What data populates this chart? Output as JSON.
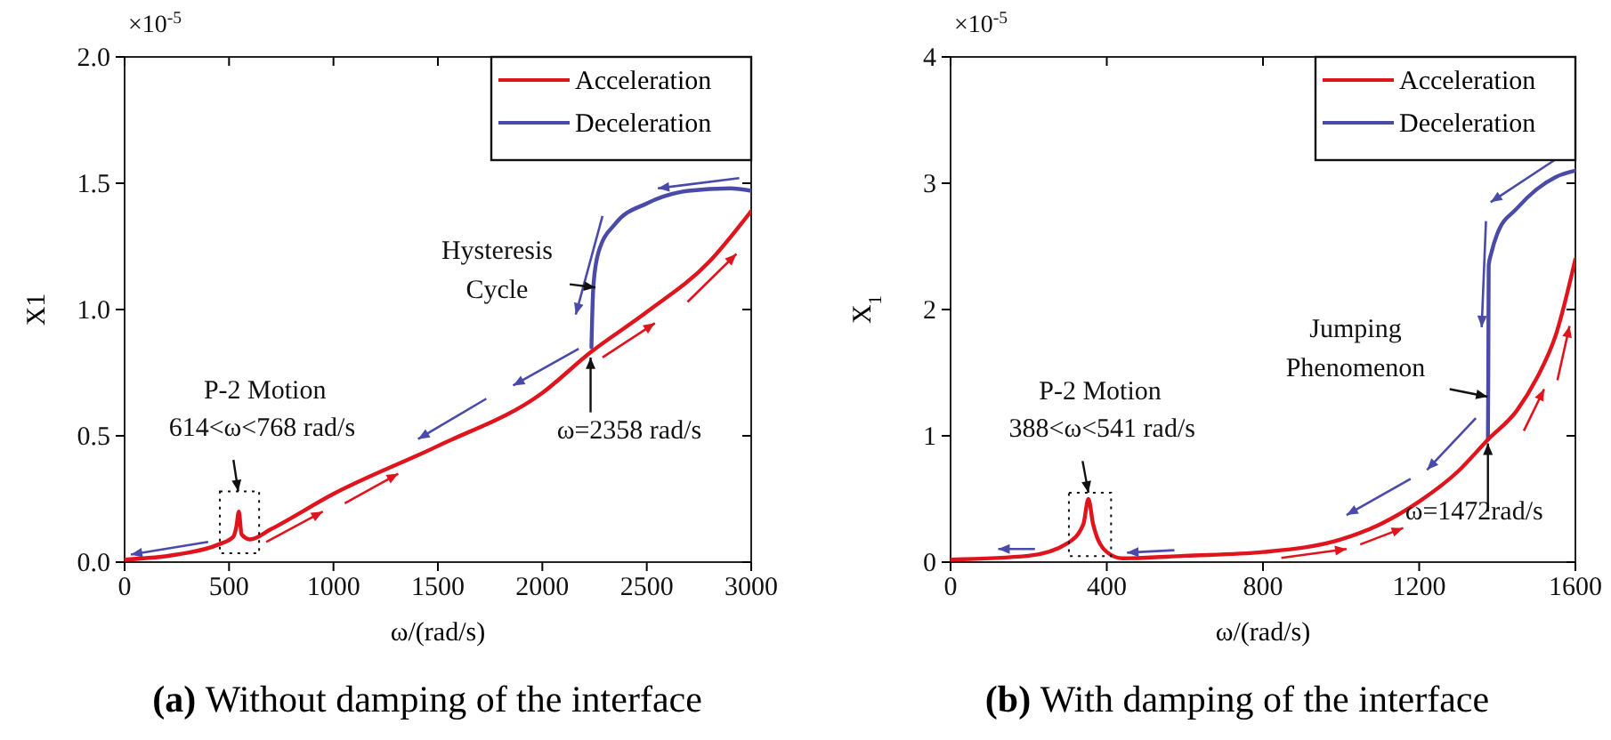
{
  "chart_data": [
    {
      "type": "line",
      "title": "(a) Without damping of the interface",
      "xlabel": "ω/(rad/s)",
      "ylabel": "X1",
      "xlim": [
        0,
        3000
      ],
      "xticks": [
        0,
        500,
        1000,
        1500,
        2000,
        2500,
        3000
      ],
      "ylim": [
        0,
        2
      ],
      "yticks": [
        {
          "value": 0,
          "label": "0.0"
        },
        {
          "value": 0.5,
          "label": "0.5"
        },
        {
          "value": 1,
          "label": "1.0"
        },
        {
          "value": 1.5,
          "label": "1.5"
        },
        {
          "value": 2,
          "label": "2.0"
        }
      ],
      "legend": "top right",
      "grid": false,
      "annotations": [
        "×10$^{-5}$",
        "P-2 Motion",
        "614<ω<768 rad/s",
        "Hysteresis Cycle",
        "ω=2358 rad/s"
      ],
      "series": [
        {
          "name": "Acceleration",
          "color": "#e0141c",
          "x": [
            0,
            250,
            450,
            520,
            535,
            547,
            560,
            600,
            700,
            1000,
            1500,
            2000,
            2230,
            2500,
            2800,
            3000
          ],
          "values": [
            0.01,
            0.03,
            0.07,
            0.1,
            0.14,
            0.2,
            0.11,
            0.09,
            0.13,
            0.27,
            0.46,
            0.67,
            0.83,
            0.99,
            1.19,
            1.39
          ]
        },
        {
          "name": "Deceleration",
          "color": "#4a4aa8",
          "x": [
            3000,
            2900,
            2700,
            2500,
            2350,
            2270,
            2245,
            2238,
            2235
          ],
          "values": [
            1.47,
            1.48,
            1.47,
            1.42,
            1.34,
            1.23,
            1.1,
            0.95,
            0.85
          ]
        }
      ]
    },
    {
      "type": "line",
      "title": "(b) With damping of the interface",
      "xlabel": "ω/(rad/s)",
      "ylabel": "X$_{1}$",
      "xlim": [
        0,
        1600
      ],
      "xticks": [
        0,
        400,
        800,
        1200,
        1600
      ],
      "ylim": [
        0,
        4
      ],
      "yticks": [
        0,
        1,
        2,
        3,
        4
      ],
      "legend": "top right",
      "grid": false,
      "annotations": [
        "×10$^{-5}$",
        "P-2 Motion",
        "388<ω<541 rad/s",
        "Jumping Phenomenon",
        "ω=1472rad/s"
      ],
      "series": [
        {
          "name": "Acceleration",
          "color": "#e0141c",
          "x": [
            0,
            200,
            300,
            340,
            353,
            365,
            400,
            440,
            600,
            800,
            1000,
            1100,
            1200,
            1300,
            1376,
            1450,
            1500,
            1550,
            1600
          ],
          "values": [
            0.02,
            0.05,
            0.15,
            0.3,
            0.5,
            0.3,
            0.08,
            0.03,
            0.05,
            0.08,
            0.18,
            0.3,
            0.48,
            0.72,
            0.97,
            1.2,
            1.45,
            1.8,
            2.4
          ]
        },
        {
          "name": "Deceleration",
          "color": "#4a4aa8",
          "x": [
            1600,
            1550,
            1500,
            1450,
            1400,
            1385,
            1378,
            1377,
            1376
          ],
          "values": [
            3.1,
            3.05,
            2.95,
            2.8,
            2.6,
            2.45,
            2.35,
            1.5,
            0.97
          ]
        }
      ]
    }
  ]
}
